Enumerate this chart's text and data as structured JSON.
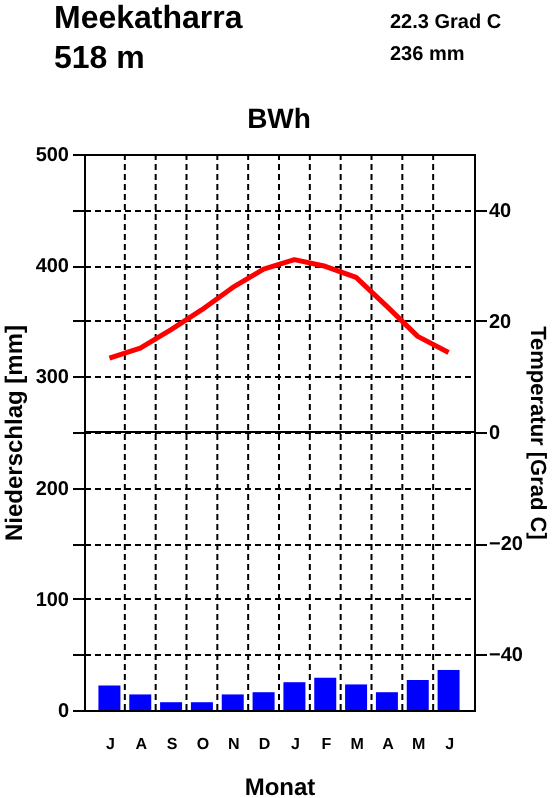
{
  "chart_data": {
    "type": "bar",
    "title": "Meekatharra",
    "subtitle": "518 m",
    "annotations": [
      "22.3 Grad C",
      "236 mm",
      "BWh"
    ],
    "xlabel": "Monat",
    "ylabel": "Niederschlag [mm]",
    "y2label": "Temperatur [Grad C]",
    "categories": [
      "J",
      "A",
      "S",
      "O",
      "N",
      "D",
      "J",
      "F",
      "M",
      "A",
      "M",
      "J"
    ],
    "series": [
      {
        "color": "#0000ff",
        "values": [
          22,
          14,
          7,
          7,
          14,
          16,
          25,
          29,
          23,
          16,
          27,
          36
        ]
      },
      {
        "type": "line",
        "axis": "y2",
        "color": "#ff0000",
        "values": [
          13.3,
          15.1,
          18.4,
          22.0,
          26.0,
          29.3,
          31.0,
          29.8,
          27.8,
          22.6,
          17.2,
          14.3
        ]
      }
    ],
    "ylim": [
      0,
      500
    ],
    "yticks": [
      0,
      {
        "value": 50,
        "label": null
      },
      100,
      {
        "value": 150,
        "label": null
      },
      200,
      {
        "value": 250,
        "label": null
      },
      300,
      {
        "value": 350,
        "label": null
      },
      400,
      {
        "value": 450,
        "label": null
      },
      500
    ],
    "y2lim": [
      -50,
      50
    ],
    "y2ticks": [
      -40,
      -20,
      0,
      20,
      40
    ],
    "ref_lines": [
      {
        "axis": "y2",
        "value": 0,
        "color": "#000000",
        "line_style": "solid"
      }
    ],
    "grid": true,
    "marker": "none",
    "line_style": "solid"
  }
}
